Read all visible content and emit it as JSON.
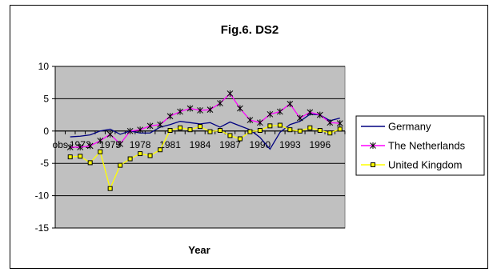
{
  "chart_data": {
    "type": "line",
    "title": "Fig.6. DS2",
    "xlabel": "Year",
    "ylabel": "",
    "ylim": [
      -15,
      10
    ],
    "yticks": [
      -15,
      -10,
      -5,
      0,
      5,
      10
    ],
    "x": [
      "obs",
      1971,
      1972,
      1973,
      1974,
      1975,
      1976,
      1977,
      1978,
      1979,
      1980,
      1981,
      1982,
      1983,
      1984,
      1985,
      1986,
      1987,
      1988,
      1989,
      1990,
      1991,
      1992,
      1993,
      1994,
      1995,
      1996,
      1997,
      1998
    ],
    "x_tick_labels": [
      "obs",
      "1972",
      "1975",
      "1978",
      "1981",
      "1984",
      "1987",
      "1990",
      "1993",
      "1996"
    ],
    "x_tick_label_values": [
      "obs",
      1972,
      1975,
      1978,
      1981,
      1984,
      1987,
      1990,
      1993,
      1996
    ],
    "grid": "horizontal",
    "plot_background": "#c0c0c0",
    "legend_position": "right",
    "series": [
      {
        "name": "Germany",
        "color": "#000080",
        "marker": "none",
        "values": [
          null,
          -0.9,
          -0.8,
          -0.6,
          0.0,
          0.3,
          -0.5,
          0.0,
          -0.3,
          -0.3,
          0.6,
          1.0,
          1.5,
          1.3,
          1.1,
          1.3,
          0.6,
          1.4,
          0.8,
          0.2,
          -1.0,
          -2.8,
          -0.2,
          1.0,
          1.5,
          2.6,
          2.5,
          1.6,
          2.0
        ]
      },
      {
        "name": "The Netherlands",
        "color": "#ff00ff",
        "marker": "star",
        "values": [
          null,
          -2.5,
          -2.5,
          -2.3,
          -1.5,
          -0.5,
          -2.0,
          0.0,
          0.2,
          0.8,
          1.0,
          2.3,
          3.0,
          3.5,
          3.2,
          3.3,
          4.3,
          5.8,
          3.5,
          1.7,
          1.3,
          2.6,
          3.0,
          4.2,
          2.0,
          2.9,
          2.5,
          1.3,
          1.2
        ]
      },
      {
        "name": "United Kingdom",
        "color": "#ffff00",
        "marker": "square",
        "values": [
          null,
          -4.0,
          -3.9,
          -4.9,
          -3.2,
          -8.9,
          -5.3,
          -4.3,
          -3.5,
          -3.8,
          -2.9,
          0.1,
          0.5,
          0.2,
          0.7,
          -0.1,
          0.1,
          -0.7,
          -1.2,
          -0.1,
          0.1,
          0.8,
          0.9,
          0.2,
          0.0,
          0.5,
          0.1,
          -0.3,
          0.3
        ]
      }
    ]
  }
}
